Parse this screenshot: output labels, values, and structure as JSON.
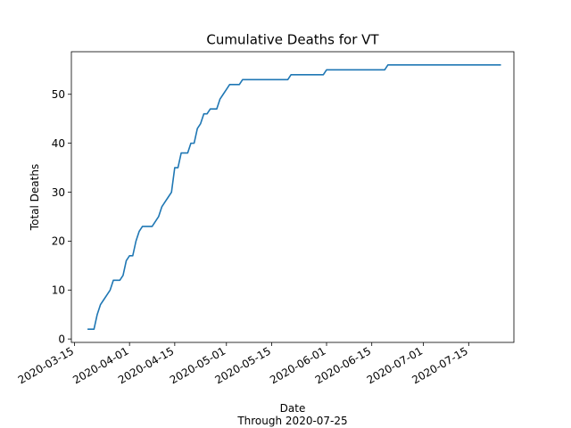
{
  "chart_data": {
    "type": "line",
    "title": "Cumulative Deaths for VT",
    "xlabel": "Date",
    "xlabel_sub": "Through 2020-07-25",
    "ylabel": "Total Deaths",
    "x_ticks": [
      "2020-03-15",
      "2020-04-01",
      "2020-04-15",
      "2020-05-01",
      "2020-05-15",
      "2020-06-01",
      "2020-06-15",
      "2020-07-01",
      "2020-07-15"
    ],
    "y_ticks": [
      0,
      10,
      20,
      30,
      40,
      50
    ],
    "ylim": [
      -0.7,
      58.7
    ],
    "xlim": [
      "2020-03-14",
      "2020-07-29"
    ],
    "grid": false,
    "series": [
      {
        "color": "#1f77b4",
        "points": [
          [
            "2020-03-19",
            2
          ],
          [
            "2020-03-20",
            2
          ],
          [
            "2020-03-21",
            2
          ],
          [
            "2020-03-22",
            5
          ],
          [
            "2020-03-23",
            7
          ],
          [
            "2020-03-24",
            8
          ],
          [
            "2020-03-25",
            9
          ],
          [
            "2020-03-26",
            10
          ],
          [
            "2020-03-27",
            12
          ],
          [
            "2020-03-28",
            12
          ],
          [
            "2020-03-29",
            12
          ],
          [
            "2020-03-30",
            13
          ],
          [
            "2020-03-31",
            16
          ],
          [
            "2020-04-01",
            17
          ],
          [
            "2020-04-02",
            17
          ],
          [
            "2020-04-03",
            20
          ],
          [
            "2020-04-04",
            22
          ],
          [
            "2020-04-05",
            23
          ],
          [
            "2020-04-06",
            23
          ],
          [
            "2020-04-07",
            23
          ],
          [
            "2020-04-08",
            23
          ],
          [
            "2020-04-09",
            24
          ],
          [
            "2020-04-10",
            25
          ],
          [
            "2020-04-11",
            27
          ],
          [
            "2020-04-12",
            28
          ],
          [
            "2020-04-13",
            29
          ],
          [
            "2020-04-14",
            30
          ],
          [
            "2020-04-15",
            35
          ],
          [
            "2020-04-16",
            35
          ],
          [
            "2020-04-17",
            38
          ],
          [
            "2020-04-18",
            38
          ],
          [
            "2020-04-19",
            38
          ],
          [
            "2020-04-20",
            40
          ],
          [
            "2020-04-21",
            40
          ],
          [
            "2020-04-22",
            43
          ],
          [
            "2020-04-23",
            44
          ],
          [
            "2020-04-24",
            46
          ],
          [
            "2020-04-25",
            46
          ],
          [
            "2020-04-26",
            47
          ],
          [
            "2020-04-27",
            47
          ],
          [
            "2020-04-28",
            47
          ],
          [
            "2020-04-29",
            49
          ],
          [
            "2020-04-30",
            50
          ],
          [
            "2020-05-01",
            51
          ],
          [
            "2020-05-02",
            52
          ],
          [
            "2020-05-03",
            52
          ],
          [
            "2020-05-04",
            52
          ],
          [
            "2020-05-05",
            52
          ],
          [
            "2020-05-06",
            53
          ],
          [
            "2020-05-07",
            53
          ],
          [
            "2020-05-20",
            53
          ],
          [
            "2020-05-21",
            54
          ],
          [
            "2020-05-22",
            54
          ],
          [
            "2020-05-31",
            54
          ],
          [
            "2020-06-01",
            55
          ],
          [
            "2020-06-19",
            55
          ],
          [
            "2020-06-20",
            56
          ],
          [
            "2020-07-25",
            56
          ]
        ]
      }
    ]
  }
}
